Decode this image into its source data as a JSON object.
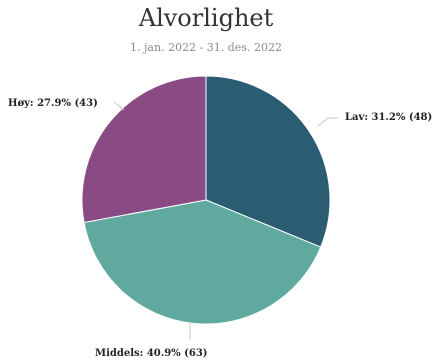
{
  "chart_data": {
    "type": "pie",
    "title": "Alvorlighet",
    "subtitle": "1. jan. 2022 - 31. des. 2022",
    "slices": [
      {
        "name": "Lav",
        "percent": 31.2,
        "count": 48,
        "label": "Lav: 31.2% (48)",
        "color": "#2a5d72"
      },
      {
        "name": "Middels",
        "percent": 40.9,
        "count": 63,
        "label": "Middels: 40.9% (63)",
        "color": "#5fa99e"
      },
      {
        "name": "Høy",
        "percent": 27.9,
        "count": 43,
        "label": "Høy: 27.9% (43)",
        "color": "#8a4b84"
      }
    ],
    "start_angle_deg": 0,
    "direction": "clockwise"
  }
}
